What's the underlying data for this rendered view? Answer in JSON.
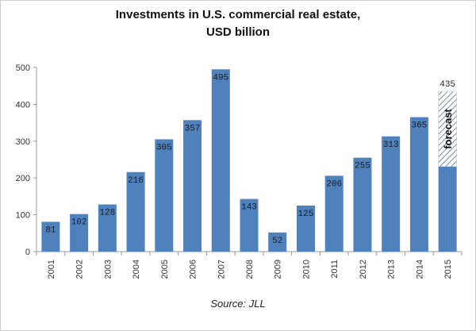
{
  "title_line1": "Investments in U.S. commercial real estate,",
  "title_line2": "USD billion",
  "source": "Source: JLL",
  "chart_data": {
    "type": "bar",
    "title": "Investments in U.S. commercial real estate, USD billion",
    "categories": [
      "2001",
      "2002",
      "2003",
      "2004",
      "2005",
      "2006",
      "2007",
      "2008",
      "2009",
      "2010",
      "2011",
      "2012",
      "2013",
      "2014",
      "2015"
    ],
    "values": [
      81,
      102,
      128,
      216,
      305,
      357,
      495,
      143,
      52,
      125,
      206,
      255,
      313,
      365,
      435
    ],
    "data_labels": [
      "81",
      "102",
      "128",
      "216",
      "305",
      "357",
      "495",
      "143",
      "52",
      "125",
      "206",
      "255",
      "313",
      "365",
      "435"
    ],
    "forecast": {
      "category": "2015",
      "solid_value": 231,
      "total_value": 435,
      "label": "forecast"
    },
    "ylim": [
      0,
      500
    ],
    "yticks": [
      0,
      100,
      200,
      300,
      400,
      500
    ],
    "grid": false,
    "bar_color": "#4f81bd"
  }
}
